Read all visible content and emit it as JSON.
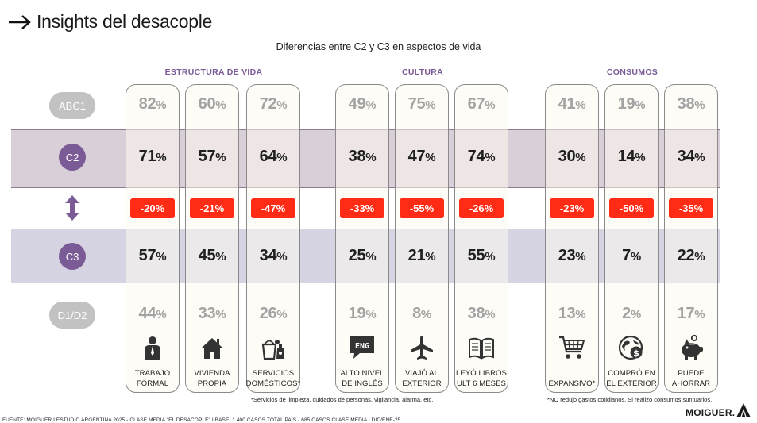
{
  "header": {
    "title": "Insights del desacople",
    "subtitle": "Diferencias entre C2 y C3 en aspectos de vida"
  },
  "groups": [
    "ESTRUCTURA DE VIDA",
    "CULTURA",
    "CONSUMOS"
  ],
  "segments": {
    "abc1": "ABC1",
    "c2": "C2",
    "c3": "C3",
    "d1d2": "D1/D2"
  },
  "colors": {
    "accent_purple": "#7b5b95",
    "badge_red": "#ff2b14",
    "band_c2": "#d9cfd9",
    "band_c3": "#d6d4e3"
  },
  "columns": [
    {
      "icon": "worker-icon",
      "label_1": "TRABAJO",
      "label_2": "FORMAL",
      "abc1": "82",
      "c2": "71",
      "diff": "-20%",
      "c3": "57",
      "d1d2": "44"
    },
    {
      "icon": "house-icon",
      "label_1": "VIVIENDA",
      "label_2": "PROPIA",
      "abc1": "60",
      "c2": "57",
      "diff": "-21%",
      "c3": "45",
      "d1d2": "33"
    },
    {
      "icon": "cleaning-bucket-icon",
      "label_1": "SERVICIOS",
      "label_2": "DOMÉSTICOS*",
      "abc1": "72",
      "c2": "64",
      "diff": "-47%",
      "c3": "34",
      "d1d2": "26"
    },
    {
      "icon": "english-speech-icon",
      "label_1": "ALTO NIVEL",
      "label_2": "DE INGLÉS",
      "abc1": "49",
      "c2": "38",
      "diff": "-33%",
      "c3": "25",
      "d1d2": "19"
    },
    {
      "icon": "airplane-icon",
      "label_1": "VIAJÓ AL",
      "label_2": "EXTERIOR",
      "abc1": "75",
      "c2": "47",
      "diff": "-55%",
      "c3": "21",
      "d1d2": "8"
    },
    {
      "icon": "book-icon",
      "label_1": "LEYÓ LIBROS",
      "label_2": "ULT 6 MESES",
      "abc1": "67",
      "c2": "74",
      "diff": "-26%",
      "c3": "55",
      "d1d2": "38"
    },
    {
      "icon": "shopping-cart-icon",
      "label_1": "",
      "label_2": "EXPANSIVO*",
      "abc1": "41",
      "c2": "30",
      "diff": "-23%",
      "c3": "23",
      "d1d2": "13"
    },
    {
      "icon": "globe-money-icon",
      "label_1": "COMPRÓ EN",
      "label_2": "EL EXTERIOR",
      "abc1": "19",
      "c2": "14",
      "diff": "-50%",
      "c3": "7",
      "d1d2": "2"
    },
    {
      "icon": "piggy-bank-icon",
      "label_1": "PUEDE",
      "label_2": "AHORRAR",
      "abc1": "38",
      "c2": "34",
      "diff": "-35%",
      "c3": "22",
      "d1d2": "17"
    }
  ],
  "percent_sign": "%",
  "notes": {
    "services": "*Servicios de limpieza, cuidados de personas, vigilancia, alarma, etc.",
    "consumption": "*NO redujo gastos cotidianos. Si realizó consumos suntuarios."
  },
  "footer": "FUENTE:  MOIGUER  I  ESTUDIO ARGENTINA 2025 - CLASE MEDIA \"EL DESACOPLE\"  I  BASE: 1.400 CASOS TOTAL PAÍS - 685 CASOS CLASE MEDIA  I  DIC/ENE-25",
  "brand": "MOIGUER."
}
